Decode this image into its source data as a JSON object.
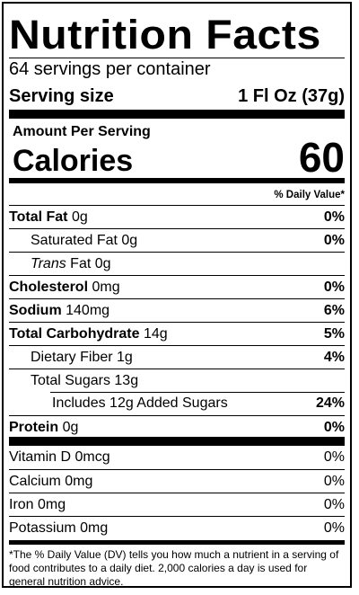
{
  "title": "Nutrition Facts",
  "servings_per_container": "64 servings per container",
  "serving_size_label": "Serving size",
  "serving_size_value": "1 Fl Oz (37g)",
  "amount_per_serving": "Amount Per Serving",
  "calories_label": "Calories",
  "calories_value": "60",
  "daily_value_header": "% Daily Value*",
  "nutrients": {
    "total_fat": {
      "name": "Total Fat",
      "amount": "0g",
      "dv": "0%"
    },
    "saturated_fat": {
      "name": "Saturated Fat",
      "amount": "0g",
      "dv": "0%"
    },
    "trans_fat": {
      "prefix": "Trans",
      "name": "Fat",
      "amount": "0g"
    },
    "cholesterol": {
      "name": "Cholesterol",
      "amount": "0mg",
      "dv": "0%"
    },
    "sodium": {
      "name": "Sodium",
      "amount": "140mg",
      "dv": "6%"
    },
    "total_carbohydrate": {
      "name": "Total Carbohydrate",
      "amount": "14g",
      "dv": "5%"
    },
    "dietary_fiber": {
      "name": "Dietary Fiber",
      "amount": "1g",
      "dv": "4%"
    },
    "total_sugars": {
      "name": "Total Sugars",
      "amount": "13g"
    },
    "added_sugars": {
      "text": "Includes 12g Added Sugars",
      "dv": "24%"
    },
    "protein": {
      "name": "Protein",
      "amount": "0g",
      "dv": "0%"
    }
  },
  "vitamins": {
    "vitamin_d": {
      "name": "Vitamin D 0mcg",
      "dv": "0%"
    },
    "calcium": {
      "name": "Calcium 0mg",
      "dv": "0%"
    },
    "iron": {
      "name": "Iron 0mg",
      "dv": "0%"
    },
    "potassium": {
      "name": "Potassium 0mg",
      "dv": "0%"
    }
  },
  "footnote": "*The % Daily Value (DV) tells you how much a nutrient in a serving of food contributes to a daily diet. 2,000 calories a day is used for general nutrition advice."
}
